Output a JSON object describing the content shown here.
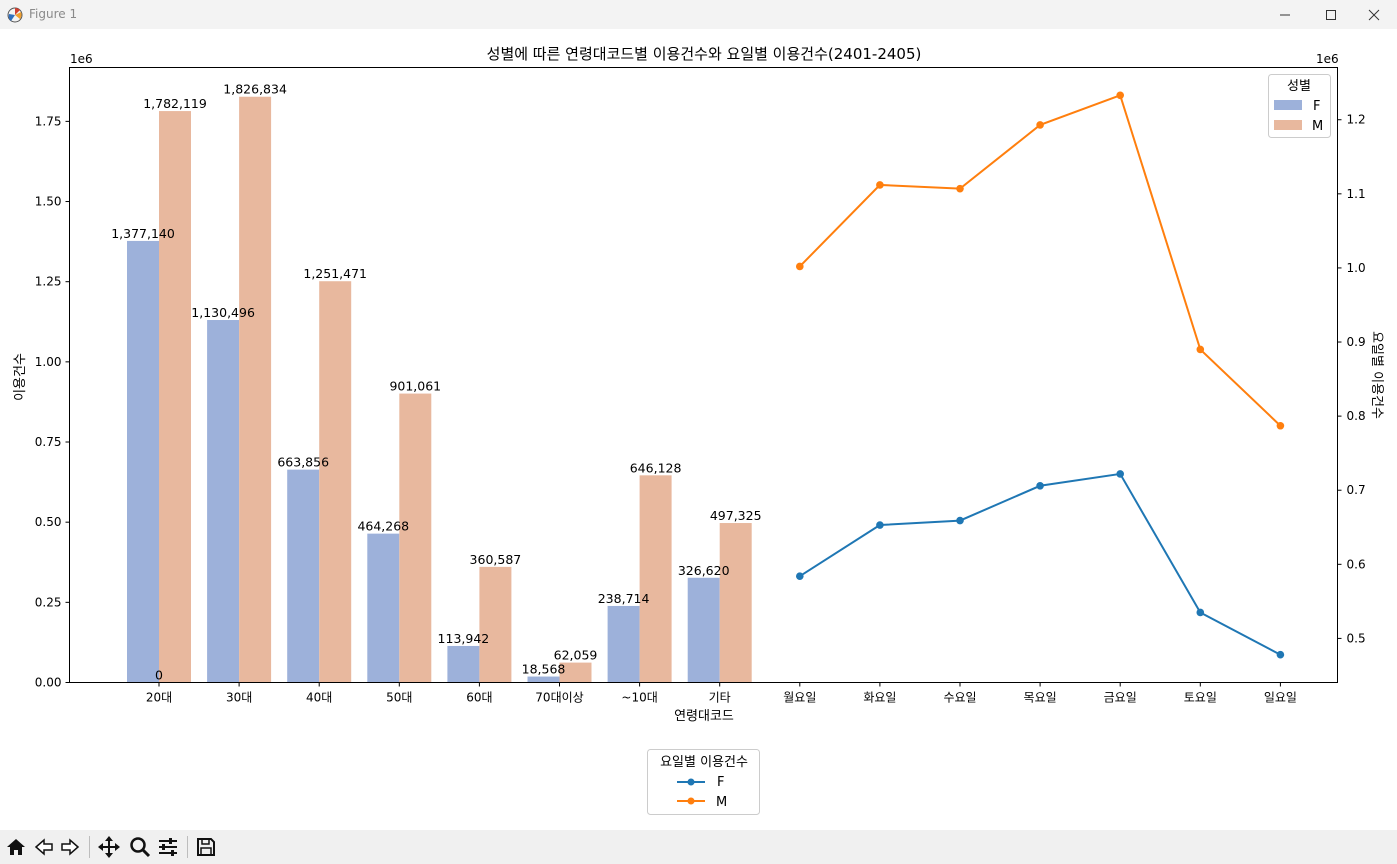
{
  "window": {
    "title": "Figure 1",
    "minimize_icon": "minimize-icon",
    "maximize_icon": "maximize-icon",
    "close_icon": "close-icon"
  },
  "toolbar": {
    "icons": [
      "home-icon",
      "back-arrow-icon",
      "forward-arrow-icon",
      "pan-icon",
      "zoom-icon",
      "configure-subplots-icon",
      "save-icon"
    ]
  },
  "chart_data": {
    "type": "bar",
    "title": "성별에 따른 연령대코드별 이용건수와 요일별 이용건수(2401-2405)",
    "xlabel": "연령대코드",
    "ylabel": "이용건수",
    "y2label": "요일별 이용건수",
    "y_offset_text": "1e6",
    "y2_offset_text": "1e6",
    "ylim": [
      0,
      1.918
    ],
    "y2lim": [
      0.4405,
      1.2705
    ],
    "yticks": [
      "0.00",
      "0.25",
      "0.50",
      "0.75",
      "1.00",
      "1.25",
      "1.50",
      "1.75"
    ],
    "y2ticks": [
      "0.5",
      "0.6",
      "0.7",
      "0.8",
      "0.9",
      "1.0",
      "1.1",
      "1.2"
    ],
    "xticks": [
      "20대",
      "30대",
      "40대",
      "50대",
      "60대",
      "70대이상",
      "~10대",
      "기타",
      "월요일",
      "화요일",
      "수요일",
      "목요일",
      "금요일",
      "토요일",
      "일요일"
    ],
    "bars": {
      "categories": [
        "20대",
        "30대",
        "40대",
        "50대",
        "60대",
        "70대이상",
        "~10대",
        "기타"
      ],
      "series": [
        {
          "name": "F",
          "color": "#9db1da",
          "values": [
            1377140,
            1130496,
            663856,
            464268,
            113942,
            18568,
            238714,
            326620
          ],
          "labels": [
            "1,377,140",
            "1,130,496",
            "663,856",
            "464,268",
            "113,942",
            "18,568",
            "238,714",
            "326,620"
          ]
        },
        {
          "name": "M",
          "color": "#e8b89e",
          "values": [
            1782119,
            1826834,
            1251471,
            901061,
            360587,
            62059,
            646128,
            497325
          ],
          "labels": [
            "1,782,119",
            "1,826,834",
            "1,251,471",
            "901,061",
            "360,587",
            "62,059",
            "646,128",
            "497,325"
          ]
        }
      ],
      "extra_label": "0"
    },
    "lines": {
      "categories": [
        "월요일",
        "화요일",
        "수요일",
        "목요일",
        "금요일",
        "토요일",
        "일요일"
      ],
      "series": [
        {
          "name": "F",
          "color": "#1f77b4",
          "values": [
            584000,
            653000,
            659000,
            706000,
            722000,
            535000,
            478000
          ]
        },
        {
          "name": "M",
          "color": "#ff7f0e",
          "values": [
            1002000,
            1112000,
            1107000,
            1193000,
            1233000,
            890000,
            787000
          ]
        }
      ]
    },
    "legend_bars": {
      "title": "성별",
      "position": "top-right",
      "items": [
        "F",
        "M"
      ]
    },
    "legend_lines": {
      "title": "요일별 이용건수",
      "position": "bottom-center",
      "items": [
        "F",
        "M"
      ]
    }
  }
}
